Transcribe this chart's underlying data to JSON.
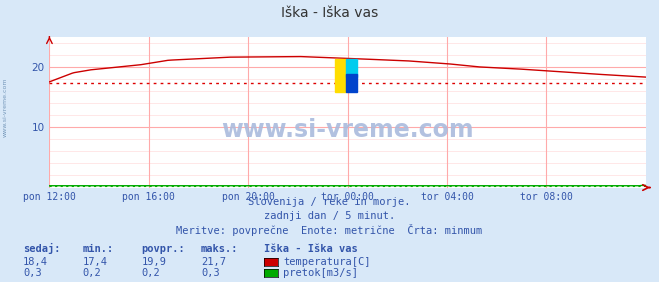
{
  "title": "Iška - Iška vas",
  "bg_color": "#d8e8f8",
  "plot_bg_color": "#ffffff",
  "grid_color_major": "#ffaaaa",
  "grid_color_minor": "#ffdddd",
  "x_labels": [
    "pon 12:00",
    "pon 16:00",
    "pon 20:00",
    "tor 00:00",
    "tor 04:00",
    "tor 08:00"
  ],
  "x_ticks_norm": [
    0.0,
    0.1667,
    0.3333,
    0.5,
    0.6667,
    0.8333
  ],
  "ylim": [
    0,
    25
  ],
  "yticks": [
    10,
    20
  ],
  "watermark": "www.si-vreme.com",
  "sub_text1": "Slovenija / reke in morje.",
  "sub_text2": "zadnji dan / 5 minut.",
  "sub_text3": "Meritve: povprečne  Enote: metrične  Črta: minmum",
  "temp_color": "#cc0000",
  "flow_color": "#00aa00",
  "minline_color": "#dd0000",
  "minline_value": 17.4,
  "flow_minline_value": 0.2,
  "legend_title": "Iška - Iška vas",
  "legend_items": [
    "temperatura[C]",
    "pretok[m3/s]"
  ],
  "legend_colors": [
    "#cc0000",
    "#00aa00"
  ],
  "stats_headers": [
    "sedaj:",
    "min.:",
    "povpr.:",
    "maks.:"
  ],
  "stats_temp": [
    "18,4",
    "17,4",
    "19,9",
    "21,7"
  ],
  "stats_flow": [
    "0,3",
    "0,2",
    "0,2",
    "0,3"
  ],
  "text_color": "#3355aa",
  "sidebar_text": "www.si-vreme.com",
  "n_points": 288,
  "logo_yellow": "#ffdd00",
  "logo_blue": "#0055cc",
  "logo_cyan": "#00ccdd",
  "watermark_color": "#aabbdd"
}
